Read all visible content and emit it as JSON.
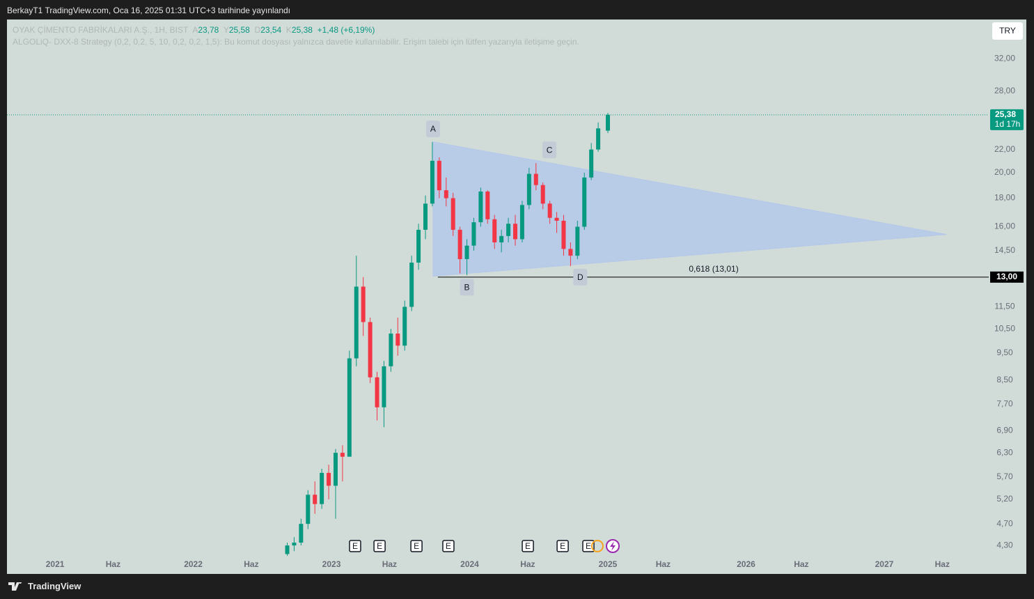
{
  "header": {
    "published": "BerkayT1 TradingView.com, Oca 16, 2025 01:31 UTC+3 tarihinde yayınlandı"
  },
  "legend": {
    "symbol": "OYAK ÇİMENTO FABRİKALARI A.Ş., 1H, BIST",
    "open_key": "A",
    "open": "23,78",
    "high_key": "Y",
    "high": "25,58",
    "low_key": "D",
    "low": "23,54",
    "close_key": "K",
    "close": "25,38",
    "change": "+1,48 (+6,19%)",
    "indicator": "ALGOLiQ- DXX-8 Strategy (0,2, 0,2, 5, 10, 0,2, 0,2, 1,5): Bu komut dosyası yalnızca davetle kullanılabilir. Erişim talebi için lütfen yazarıyla iletişime geçin."
  },
  "currency": "TRY",
  "footer": {
    "brand": "TradingView"
  },
  "chart_data": {
    "type": "candlestick",
    "log_scale": true,
    "up_color": "#089981",
    "down_color": "#f23645",
    "xlim": [
      2020.652,
      2027.756
    ],
    "ylim": [
      4.12,
      37.6
    ],
    "xticks": [
      {
        "value": 2021,
        "label": "2021"
      },
      {
        "value": 2021.42,
        "label": "Haz"
      },
      {
        "value": 2022,
        "label": "2022"
      },
      {
        "value": 2022.42,
        "label": "Haz"
      },
      {
        "value": 2023,
        "label": "2023"
      },
      {
        "value": 2023.42,
        "label": "Haz"
      },
      {
        "value": 2024,
        "label": "2024"
      },
      {
        "value": 2024.42,
        "label": "Haz"
      },
      {
        "value": 2025,
        "label": "2025"
      },
      {
        "value": 2025.4,
        "label": "Haz"
      },
      {
        "value": 2026,
        "label": "2026"
      },
      {
        "value": 2026.4,
        "label": "Haz"
      },
      {
        "value": 2027,
        "label": "2027"
      },
      {
        "value": 2027.42,
        "label": "Haz"
      }
    ],
    "yticks": [
      {
        "value": 4.3,
        "label": "4,30"
      },
      {
        "value": 4.7,
        "label": "4,70"
      },
      {
        "value": 5.2,
        "label": "5,20"
      },
      {
        "value": 5.7,
        "label": "5,70"
      },
      {
        "value": 6.3,
        "label": "6,30"
      },
      {
        "value": 6.9,
        "label": "6,90"
      },
      {
        "value": 7.7,
        "label": "7,70"
      },
      {
        "value": 8.5,
        "label": "8,50"
      },
      {
        "value": 9.5,
        "label": "9,50"
      },
      {
        "value": 10.5,
        "label": "10,50"
      },
      {
        "value": 11.5,
        "label": "11,50"
      },
      {
        "value": 14.5,
        "label": "14,50"
      },
      {
        "value": 16,
        "label": "16,00"
      },
      {
        "value": 18,
        "label": "18,00"
      },
      {
        "value": 20,
        "label": "20,00"
      },
      {
        "value": 22,
        "label": "22,00"
      },
      {
        "value": 28,
        "label": "28,00"
      },
      {
        "value": 32,
        "label": "32,00"
      }
    ],
    "candles": {
      "x": [
        2022.68,
        2022.73,
        2022.78,
        2022.83,
        2022.88,
        2022.93,
        2022.98,
        2023.03,
        2023.08,
        2023.13,
        2023.18,
        2023.23,
        2023.28,
        2023.33,
        2023.38,
        2023.43,
        2023.48,
        2023.53,
        2023.58,
        2023.63,
        2023.68,
        2023.73,
        2023.78,
        2023.83,
        2023.88,
        2023.93,
        2023.98,
        2024.03,
        2024.08,
        2024.13,
        2024.18,
        2024.23,
        2024.28,
        2024.33,
        2024.38,
        2024.43,
        2024.48,
        2024.53,
        2024.58,
        2024.63,
        2024.68,
        2024.73,
        2024.78,
        2024.83,
        2024.88,
        2024.93,
        2025.0
      ],
      "open": [
        4.15,
        4.3,
        4.35,
        4.7,
        5.3,
        5.1,
        5.8,
        5.5,
        6.3,
        6.2,
        9.3,
        12.5,
        10.8,
        8.6,
        7.6,
        9.0,
        10.3,
        9.8,
        11.5,
        13.8,
        15.8,
        17.6,
        21.0,
        18.6,
        18.0,
        15.8,
        14.0,
        14.8,
        16.3,
        18.5,
        16.5,
        15.0,
        15.4,
        16.2,
        15.2,
        17.5,
        19.9,
        19.0,
        17.6,
        16.6,
        16.4,
        14.6,
        14.2,
        16.0,
        19.6,
        22.0,
        23.78
      ],
      "high": [
        4.35,
        4.45,
        4.8,
        5.4,
        5.6,
        5.9,
        6.0,
        6.4,
        6.5,
        9.6,
        14.2,
        13.0,
        11.0,
        8.8,
        9.2,
        10.5,
        11.0,
        11.8,
        14.2,
        16.2,
        18.2,
        22.7,
        21.3,
        19.6,
        18.4,
        16.0,
        15.2,
        16.6,
        18.8,
        18.6,
        16.8,
        15.8,
        16.6,
        16.8,
        17.8,
        20.4,
        20.8,
        19.2,
        17.8,
        17.0,
        16.8,
        15.0,
        16.4,
        20.0,
        22.6,
        24.6,
        25.58
      ],
      "low": [
        4.12,
        4.2,
        4.3,
        4.6,
        4.9,
        5.0,
        5.2,
        4.8,
        5.6,
        6.2,
        9.0,
        10.2,
        8.4,
        7.2,
        7.0,
        8.8,
        9.4,
        9.6,
        11.3,
        13.4,
        15.2,
        17.4,
        18.0,
        17.4,
        15.4,
        13.2,
        13.1,
        14.5,
        16.0,
        16.2,
        14.6,
        14.4,
        15.0,
        14.8,
        15.0,
        17.2,
        18.6,
        17.2,
        16.2,
        15.6,
        14.2,
        13.6,
        14.0,
        15.8,
        19.4,
        21.8,
        23.54
      ],
      "close": [
        4.3,
        4.35,
        4.7,
        5.3,
        5.1,
        5.8,
        5.5,
        6.3,
        6.2,
        9.3,
        12.5,
        10.8,
        8.6,
        7.6,
        9.0,
        10.3,
        9.8,
        11.5,
        13.8,
        15.8,
        17.6,
        21.0,
        18.6,
        18.0,
        15.8,
        14.0,
        14.8,
        16.3,
        18.5,
        16.5,
        15.0,
        15.4,
        16.2,
        15.2,
        17.5,
        19.9,
        19.0,
        17.6,
        16.6,
        16.4,
        14.6,
        14.2,
        16.0,
        19.6,
        22.0,
        24.0,
        25.38
      ]
    },
    "triangle": {
      "color": "#b4c8ea",
      "points": [
        {
          "x": 2023.735,
          "y": 22.7
        },
        {
          "x": 2027.45,
          "y": 15.5
        },
        {
          "x": 2023.735,
          "y": 13.05
        }
      ]
    },
    "points": [
      {
        "label": "A",
        "x": 2023.735,
        "y": 23.95
      },
      {
        "label": "B",
        "x": 2023.98,
        "y": 12.47
      },
      {
        "label": "C",
        "x": 2024.577,
        "y": 21.97
      },
      {
        "label": "D",
        "x": 2024.8,
        "y": 13.0
      }
    ],
    "fib_line": {
      "value": 13,
      "x_start": 2023.77,
      "label": "0,618 (13,01)",
      "label_x": 2025.766,
      "axis_label": "13,00"
    },
    "last_price": {
      "value": 25.38,
      "label": "25,38",
      "countdown": "1d 17h"
    },
    "events": [
      {
        "label": "E",
        "x": 2023.171
      },
      {
        "label": "E",
        "x": 2023.348
      },
      {
        "label": "E",
        "x": 2023.615
      },
      {
        "label": "E",
        "x": 2023.846
      },
      {
        "label": "E",
        "x": 2024.421
      },
      {
        "label": "E",
        "x": 2024.673
      },
      {
        "label": "E",
        "x": 2024.859
      }
    ]
  }
}
